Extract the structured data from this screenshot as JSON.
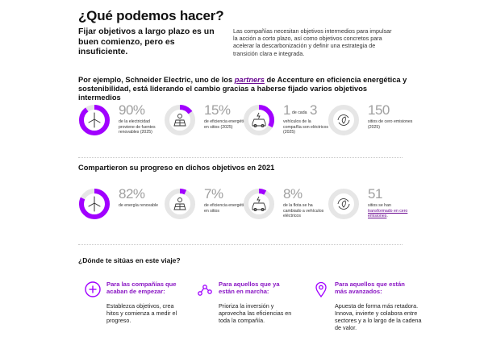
{
  "title": "¿Qué podemos hacer?",
  "lead": "Fijar objetivos a largo plazo es un buen comienzo, pero es insuficiente.",
  "intro": "Las compañías necesitan objetivos intermedios para impulsar la acción a corto plazo, así como objetivos concretos para acelerar la descarbonización y definir una estrategia de transición clara e integrada.",
  "section1": {
    "heading_pre": "Por ejemplo, Schneider Electric, uno de los ",
    "heading_em": "partners",
    "heading_post": " de Accenture en eficiencia energética y sostenibilidad, está liderando el cambio gracias a haberse fijado varios objetivos intermedios",
    "stats": [
      {
        "value": "90%",
        "text": "de la electricidad proviene de fuentes renovables (2025)",
        "fraction": 0.9,
        "icon": "wind-turbine-icon"
      },
      {
        "value": "15%",
        "text": "de eficiencia energética en sitios (2025)",
        "fraction": 0.15,
        "icon": "solar-panel-icon"
      },
      {
        "value_a": "1",
        "de": "de cada",
        "value_b": "3",
        "text": "vehículos de la compañía son eléctricos (2025)",
        "fraction": 0.33,
        "icon": "electric-car-icon"
      },
      {
        "value": "150",
        "text": "sitios de cero emisiones (2025)",
        "fraction": 0,
        "icon": "recycle-leaf-icon"
      }
    ]
  },
  "section2": {
    "heading": "Compartieron su progreso en dichos objetivos en 2021",
    "stats": [
      {
        "value": "82%",
        "text": "de energía renovable",
        "fraction": 0.82,
        "icon": "wind-turbine-icon"
      },
      {
        "value": "7%",
        "text": "de eficiencia energética en sitios",
        "fraction": 0.07,
        "icon": "solar-panel-icon"
      },
      {
        "value": "8%",
        "text": "de la flota se ha cambiado a vehículos eléctricos",
        "fraction": 0.08,
        "icon": "electric-car-icon"
      },
      {
        "value": "51",
        "text_pre": "sitios se han ",
        "text_link": "transformado en cero emisiones",
        "text_post": ".",
        "fraction": 0,
        "icon": "recycle-leaf-icon"
      }
    ]
  },
  "section3": {
    "heading": "¿Dónde te sitúas en este viaje?",
    "columns": [
      {
        "title": "Para las compañías que acaban de empezar:",
        "body": "Establezca objetivos, crea hitos y comienza a medir el progreso.",
        "icon": "plus-circle-icon"
      },
      {
        "title": "Para aquellos que ya están en marcha:",
        "body": "Prioriza la inversión y aprovecha las eficiencias en toda la compañía.",
        "icon": "connected-nodes-icon"
      },
      {
        "title": "Para aquellos que están más avanzados:",
        "body": "Apuesta de forma más retadora. Innova, invierte y colabora entre sectores y a lo largo de la cadena de valor.",
        "icon": "location-pin-icon"
      }
    ]
  },
  "colors": {
    "accent": "#a100ff",
    "ring_track": "#e6e6e6",
    "number": "#a0a0a0",
    "title_accent": "#8a17c4"
  }
}
